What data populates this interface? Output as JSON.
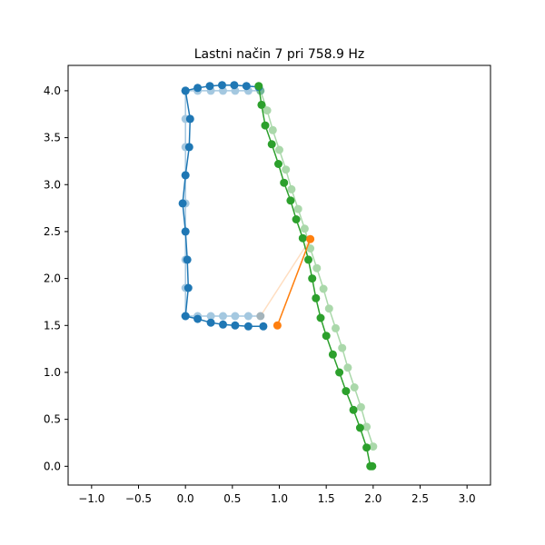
{
  "chart_data": {
    "type": "line",
    "title": "Lastni način 7 pri 758.9 Hz",
    "xlabel": "",
    "ylabel": "",
    "xlim": [
      -1.25,
      3.25
    ],
    "ylim": [
      -0.2,
      4.27
    ],
    "xticks": [
      -1.0,
      -0.5,
      0.0,
      0.5,
      1.0,
      1.5,
      2.0,
      2.5,
      3.0
    ],
    "xtick_labels": [
      "−1.0",
      "−0.5",
      "0.0",
      "0.5",
      "1.0",
      "1.5",
      "2.0",
      "2.5",
      "3.0"
    ],
    "yticks": [
      0.0,
      0.5,
      1.0,
      1.5,
      2.0,
      2.5,
      3.0,
      3.5,
      4.0
    ],
    "ytick_labels": [
      "0.0",
      "0.5",
      "1.0",
      "1.5",
      "2.0",
      "2.5",
      "3.0",
      "3.5",
      "4.0"
    ],
    "grid": false,
    "series": [
      {
        "color": "#1f77b4",
        "alpha": 0.4,
        "style": "undeformed",
        "x": [
          0.0,
          0.0,
          0.0,
          0.0,
          0.0,
          0.0,
          0.0,
          0.0,
          0.0,
          0.13,
          0.27,
          0.4,
          0.53,
          0.67,
          0.8
        ],
        "y": [
          1.6,
          1.9,
          2.2,
          2.5,
          2.8,
          3.1,
          3.4,
          3.7,
          4.0,
          4.0,
          4.0,
          4.0,
          4.0,
          4.0,
          4.0
        ]
      },
      {
        "color": "#1f77b4",
        "alpha": 0.4,
        "style": "undeformed",
        "x": [
          0.0,
          0.13,
          0.27,
          0.4,
          0.53,
          0.67,
          0.8
        ],
        "y": [
          1.6,
          1.6,
          1.6,
          1.6,
          1.6,
          1.6,
          1.6
        ]
      },
      {
        "color": "#1f77b4",
        "alpha": 1.0,
        "style": "deformed",
        "x": [
          0.83,
          0.67,
          0.53,
          0.4,
          0.27,
          0.13,
          0.0,
          0.03,
          0.02,
          0.0,
          -0.03,
          0.0,
          0.04,
          0.05,
          0.0
        ],
        "y": [
          1.49,
          1.49,
          1.5,
          1.51,
          1.53,
          1.57,
          1.6,
          1.9,
          2.2,
          2.5,
          2.8,
          3.1,
          3.4,
          3.7,
          4.0
        ]
      },
      {
        "color": "#1f77b4",
        "alpha": 1.0,
        "style": "deformed",
        "x": [
          0.0,
          0.13,
          0.26,
          0.39,
          0.52,
          0.65,
          0.78
        ],
        "y": [
          4.0,
          4.03,
          4.05,
          4.06,
          4.06,
          4.05,
          4.04
        ]
      },
      {
        "color": "#2ca02c",
        "alpha": 0.4,
        "style": "undeformed",
        "x": [
          0.8,
          0.87,
          0.93,
          1.0,
          1.07,
          1.13,
          1.2,
          1.27,
          1.33,
          1.4,
          1.47,
          1.53,
          1.6,
          1.67,
          1.73,
          1.8,
          1.87,
          1.93,
          2.0
        ],
        "y": [
          4.0,
          3.79,
          3.58,
          3.37,
          3.16,
          2.95,
          2.74,
          2.53,
          2.32,
          2.11,
          1.89,
          1.68,
          1.47,
          1.26,
          1.05,
          0.84,
          0.63,
          0.42,
          0.21
        ]
      },
      {
        "color": "#2ca02c",
        "alpha": 1.0,
        "style": "deformed",
        "x": [
          0.78,
          0.81,
          0.85,
          0.92,
          0.99,
          1.05,
          1.12,
          1.18,
          1.25,
          1.31,
          1.35,
          1.39,
          1.44,
          1.5,
          1.57,
          1.64,
          1.71,
          1.79,
          1.86,
          1.93,
          1.97,
          1.99
        ],
        "y": [
          4.05,
          3.85,
          3.63,
          3.43,
          3.22,
          3.02,
          2.83,
          2.63,
          2.43,
          2.2,
          2.0,
          1.79,
          1.58,
          1.39,
          1.19,
          1.0,
          0.8,
          0.6,
          0.41,
          0.2,
          0.0,
          0.0
        ]
      },
      {
        "color": "#ff7f0e",
        "alpha": 0.25,
        "style": "undeformed",
        "x": [
          0.8,
          1.33
        ],
        "y": [
          1.6,
          2.42
        ]
      },
      {
        "color": "#ff7f0e",
        "alpha": 1.0,
        "style": "deformed",
        "x": [
          0.98,
          1.33
        ],
        "y": [
          1.5,
          2.42
        ]
      }
    ]
  }
}
